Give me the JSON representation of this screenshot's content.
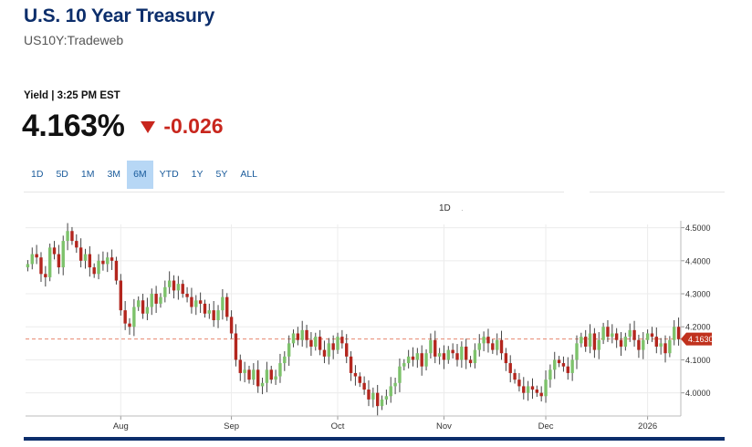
{
  "header": {
    "title": "U.S. 10 Year Treasury",
    "subtitle": "US10Y:Tradeweb"
  },
  "quote": {
    "label": "Yield | 3:25 PM EST",
    "last": "4.163%",
    "change": "-0.026",
    "direction_icon": "down-triangle-icon",
    "change_color": "#c8261d"
  },
  "ranges": [
    "1D",
    "5D",
    "1M",
    "3M",
    "6M",
    "YTD",
    "1Y",
    "5Y",
    "ALL"
  ],
  "active_range": "6M",
  "interval": "1D",
  "colors": {
    "up": "#7dc26b",
    "down": "#b3261e",
    "accent": "#0c2e6b",
    "last_price_line": "#e8866e",
    "last_price_tag": "#c0311d"
  },
  "chart_data": {
    "type": "candlestick",
    "ylim": [
      3.93,
      4.51
    ],
    "yticks": [
      "4.5000",
      "4.4000",
      "4.3000",
      "4.2000",
      "4.1000",
      "4.0000"
    ],
    "ytick_values": [
      4.5,
      4.4,
      4.3,
      4.2,
      4.1,
      4.0
    ],
    "xticks": [
      "Aug",
      "Sep",
      "Oct",
      "Nov",
      "Dec",
      "2026"
    ],
    "xtick_index": [
      21,
      46,
      70,
      94,
      117,
      140
    ],
    "last_price_label": "4.1630",
    "last_price": 4.163,
    "grid": true,
    "closes": [
      4.39,
      4.42,
      4.41,
      4.36,
      4.35,
      4.44,
      4.42,
      4.38,
      4.46,
      4.49,
      4.46,
      4.44,
      4.4,
      4.42,
      4.38,
      4.36,
      4.4,
      4.39,
      4.41,
      4.4,
      4.34,
      4.25,
      4.21,
      4.2,
      4.26,
      4.28,
      4.24,
      4.26,
      4.3,
      4.27,
      4.29,
      4.32,
      4.34,
      4.31,
      4.33,
      4.3,
      4.29,
      4.26,
      4.28,
      4.27,
      4.24,
      4.25,
      4.22,
      4.25,
      4.29,
      4.23,
      4.18,
      4.1,
      4.06,
      4.07,
      4.04,
      4.07,
      4.02,
      4.03,
      4.07,
      4.04,
      4.05,
      4.09,
      4.11,
      4.15,
      4.18,
      4.16,
      4.19,
      4.16,
      4.14,
      4.17,
      4.13,
      4.11,
      4.15,
      4.13,
      4.17,
      4.15,
      4.11,
      4.06,
      4.05,
      4.03,
      4.01,
      3.98,
      4.0,
      3.96,
      3.98,
      3.99,
      4.02,
      4.03,
      4.08,
      4.09,
      4.11,
      4.1,
      4.12,
      4.08,
      4.12,
      4.16,
      4.11,
      4.12,
      4.1,
      4.13,
      4.12,
      4.1,
      4.14,
      4.1,
      4.09,
      4.13,
      4.15,
      4.17,
      4.15,
      4.13,
      4.16,
      4.12,
      4.09,
      4.06,
      4.04,
      4.02,
      4.0,
      4.02,
      4.01,
      4.0,
      3.99,
      4.04,
      4.07,
      4.1,
      4.09,
      4.08,
      4.06,
      4.1,
      4.15,
      4.17,
      4.14,
      4.18,
      4.13,
      4.16,
      4.2,
      4.17,
      4.18,
      4.16,
      4.14,
      4.17,
      4.19,
      4.16,
      4.13,
      4.16,
      4.18,
      4.17,
      4.14,
      4.15,
      4.12,
      4.16,
      4.2,
      4.163
    ]
  }
}
